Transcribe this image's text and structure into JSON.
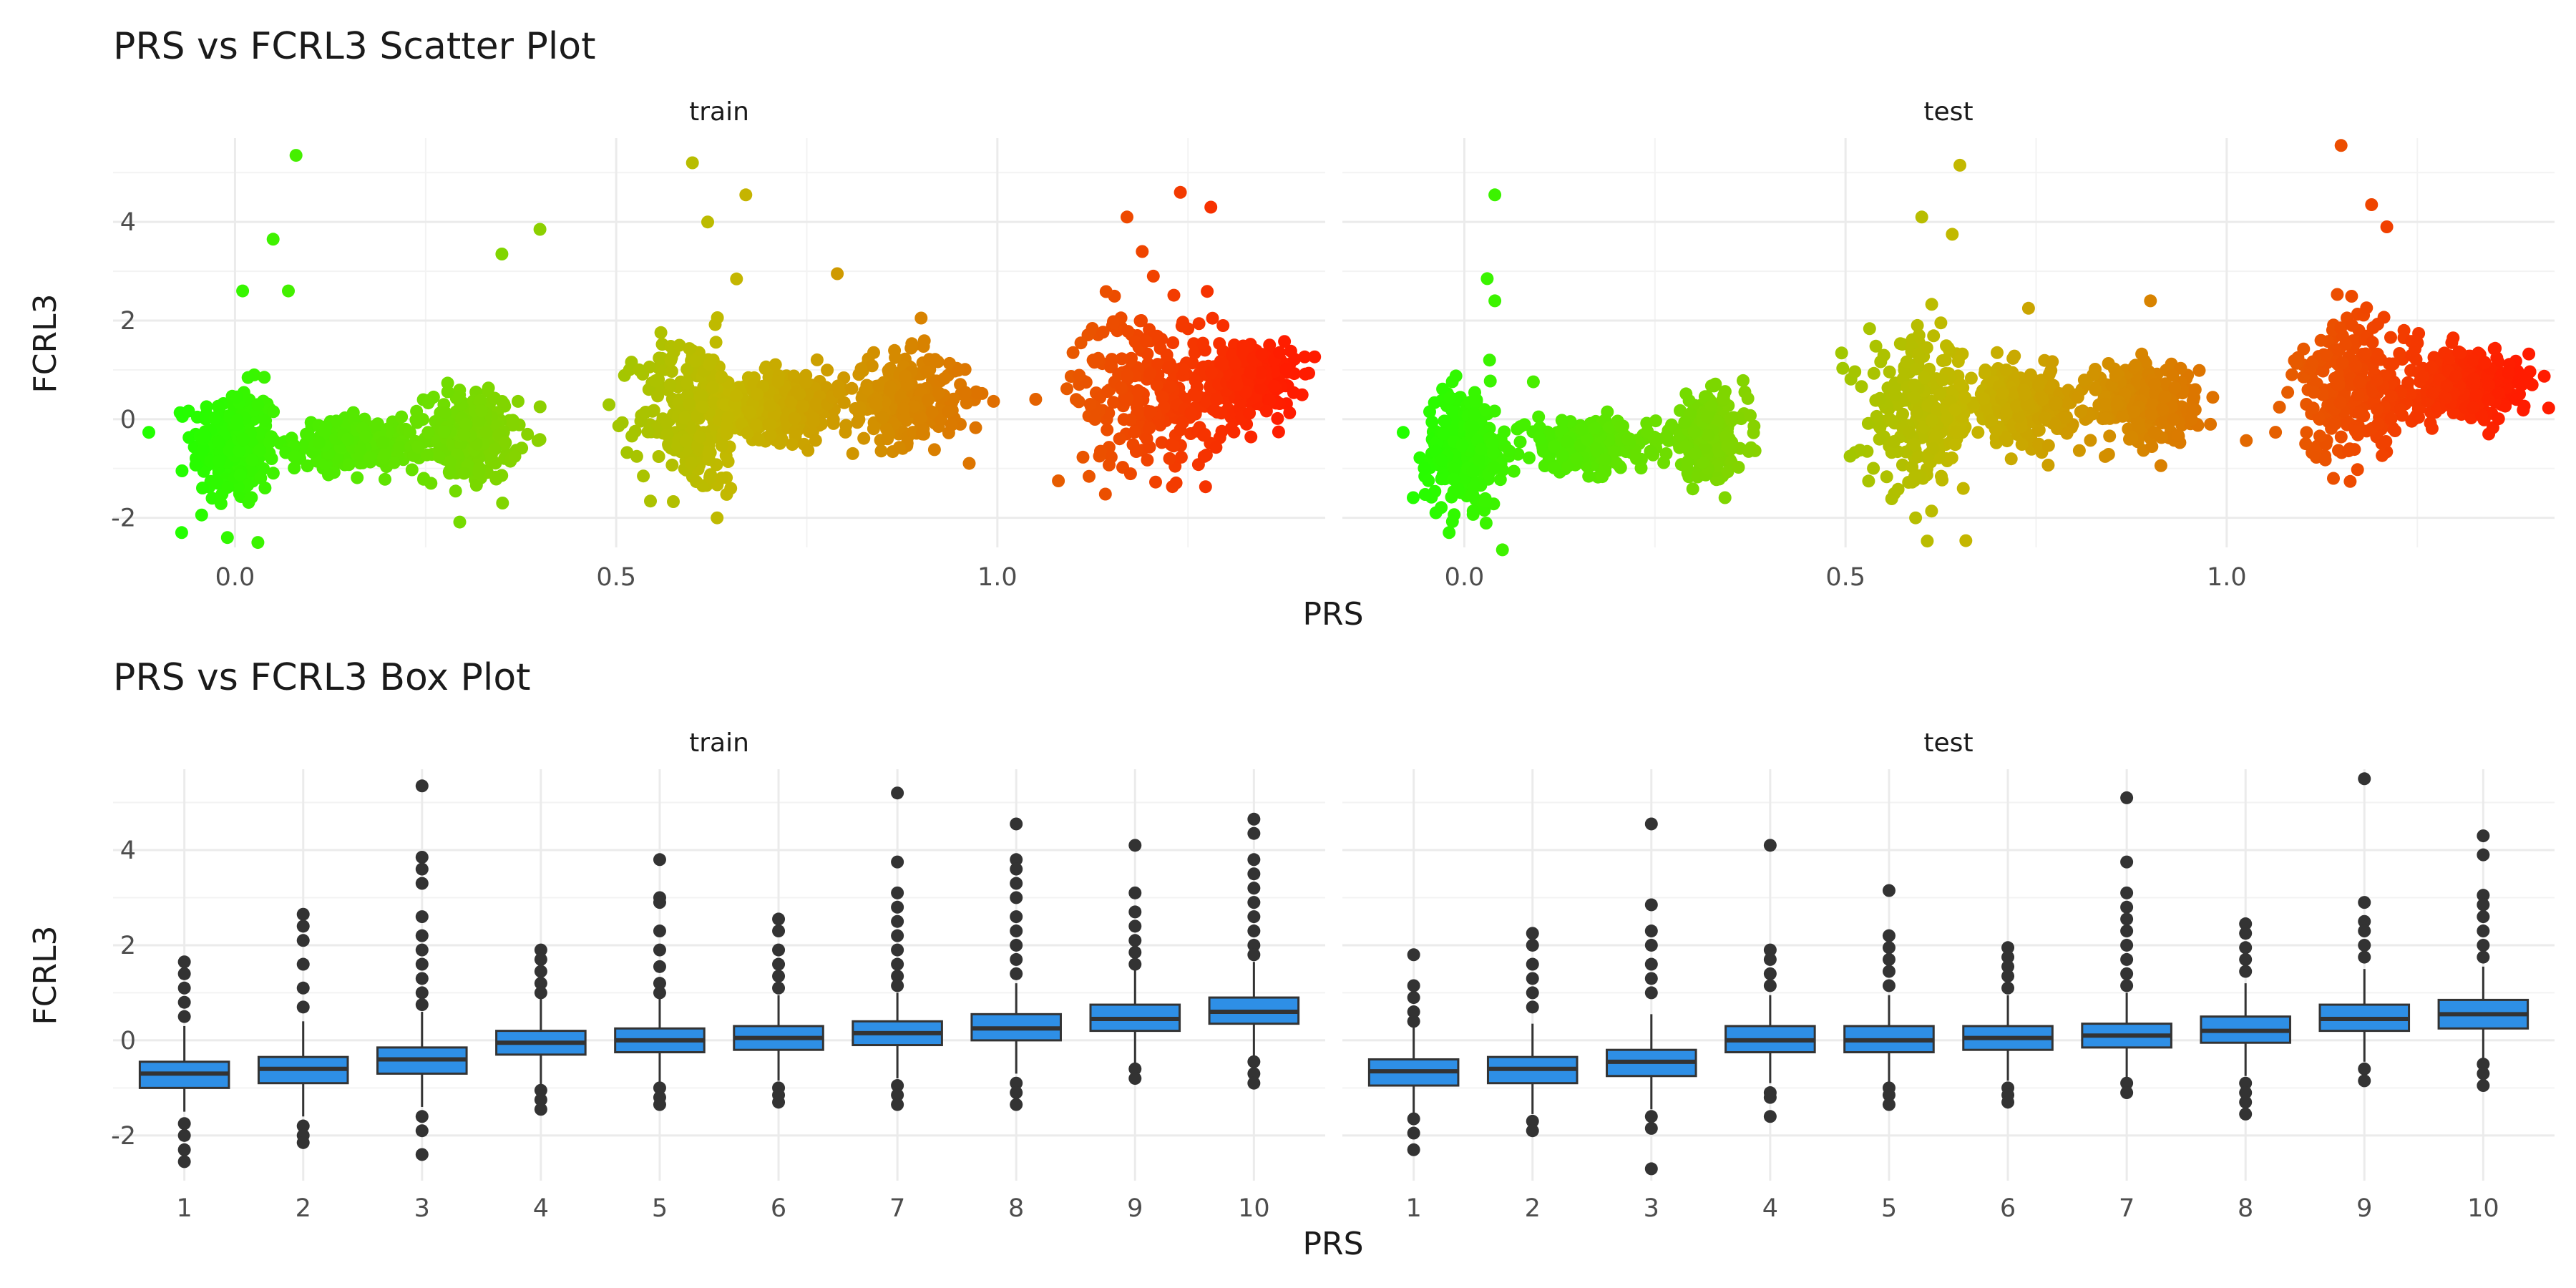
{
  "chart_data": [
    {
      "type": "scatter",
      "title": "PRS vs FCRL3 Scatter Plot",
      "xlabel": "PRS",
      "ylabel": "FCRL3",
      "xlim": [
        -0.16,
        1.43
      ],
      "ylim": [
        -2.6,
        5.7
      ],
      "xticks": [
        0.0,
        0.5,
        1.0
      ],
      "xtick_labels": [
        "0.0",
        "0.5",
        "1.0"
      ],
      "yticks": [
        -2,
        0,
        2,
        4
      ],
      "ytick_labels": [
        "-2",
        "0",
        "2",
        "4"
      ],
      "grid": true,
      "color_scale": {
        "low": "#22ff00",
        "mid": "#c3b800",
        "high": "#ff1c00",
        "by": "PRS"
      },
      "panels": [
        {
          "name": "train",
          "clusters": [
            {
              "x": 0.0,
              "y_center": -0.55,
              "x_sd": 0.028,
              "y_sd": 0.6
            },
            {
              "x": 0.16,
              "y_center": -0.5,
              "x_sd": 0.04,
              "y_sd": 0.25
            },
            {
              "x": 0.31,
              "y_center": -0.35,
              "x_sd": 0.03,
              "y_sd": 0.45
            },
            {
              "x": 0.6,
              "y_center": 0.1,
              "x_sd": 0.035,
              "y_sd": 0.8
            },
            {
              "x": 0.72,
              "y_center": 0.3,
              "x_sd": 0.04,
              "y_sd": 0.35
            },
            {
              "x": 0.88,
              "y_center": 0.4,
              "x_sd": 0.04,
              "y_sd": 0.45
            },
            {
              "x": 1.2,
              "y_center": 0.6,
              "x_sd": 0.05,
              "y_sd": 0.8
            },
            {
              "x": 1.33,
              "y_center": 0.8,
              "x_sd": 0.03,
              "y_sd": 0.4
            }
          ],
          "outliers": [
            {
              "x": 0.08,
              "y": 5.35
            },
            {
              "x": 0.05,
              "y": 3.65
            },
            {
              "x": 0.07,
              "y": 2.6
            },
            {
              "x": 0.01,
              "y": 2.6
            },
            {
              "x": -0.07,
              "y": -2.3
            },
            {
              "x": -0.01,
              "y": -2.4
            },
            {
              "x": 0.03,
              "y": -2.5
            },
            {
              "x": 0.35,
              "y": 3.35
            },
            {
              "x": 0.4,
              "y": 3.85
            },
            {
              "x": 0.6,
              "y": 5.2
            },
            {
              "x": 0.67,
              "y": 4.55
            },
            {
              "x": 0.62,
              "y": 4.0
            },
            {
              "x": 0.79,
              "y": 2.95
            },
            {
              "x": 0.9,
              "y": 2.05
            },
            {
              "x": 1.17,
              "y": 4.1
            },
            {
              "x": 1.24,
              "y": 4.6
            },
            {
              "x": 1.28,
              "y": 4.3
            },
            {
              "x": 1.19,
              "y": 3.4
            },
            {
              "x": 1.37,
              "y": 1.35
            },
            {
              "x": 1.08,
              "y": -1.25
            }
          ]
        },
        {
          "name": "test",
          "clusters": [
            {
              "x": 0.0,
              "y_center": -0.55,
              "x_sd": 0.025,
              "y_sd": 0.6
            },
            {
              "x": 0.16,
              "y_center": -0.55,
              "x_sd": 0.04,
              "y_sd": 0.25
            },
            {
              "x": 0.32,
              "y_center": -0.35,
              "x_sd": 0.025,
              "y_sd": 0.4
            },
            {
              "x": 0.6,
              "y_center": 0.1,
              "x_sd": 0.035,
              "y_sd": 0.75
            },
            {
              "x": 0.73,
              "y_center": 0.3,
              "x_sd": 0.035,
              "y_sd": 0.35
            },
            {
              "x": 0.89,
              "y_center": 0.35,
              "x_sd": 0.035,
              "y_sd": 0.4
            },
            {
              "x": 1.17,
              "y_center": 0.6,
              "x_sd": 0.04,
              "y_sd": 0.7
            },
            {
              "x": 1.32,
              "y_center": 0.7,
              "x_sd": 0.04,
              "y_sd": 0.35
            }
          ],
          "outliers": [
            {
              "x": 0.04,
              "y": 4.55
            },
            {
              "x": 0.03,
              "y": 2.85
            },
            {
              "x": 0.04,
              "y": 2.4
            },
            {
              "x": 0.05,
              "y": -2.65
            },
            {
              "x": -0.02,
              "y": -2.3
            },
            {
              "x": 0.6,
              "y": 4.1
            },
            {
              "x": 0.65,
              "y": 5.15
            },
            {
              "x": 0.64,
              "y": 3.75
            },
            {
              "x": 0.74,
              "y": 2.25
            },
            {
              "x": 0.9,
              "y": 2.4
            },
            {
              "x": 1.15,
              "y": 5.55
            },
            {
              "x": 1.19,
              "y": 4.35
            },
            {
              "x": 1.21,
              "y": 3.9
            },
            {
              "x": 1.14,
              "y": -1.2
            },
            {
              "x": 1.38,
              "y": 0.4
            }
          ]
        }
      ]
    },
    {
      "type": "box",
      "title": "PRS vs FCRL3 Box Plot",
      "xlabel": "PRS",
      "ylabel": "FCRL3",
      "categories": [
        "1",
        "2",
        "3",
        "4",
        "5",
        "6",
        "7",
        "8",
        "9",
        "10"
      ],
      "ylim": [
        -2.95,
        5.7
      ],
      "yticks": [
        -2,
        0,
        2,
        4
      ],
      "ytick_labels": [
        "-2",
        "0",
        "2",
        "4"
      ],
      "grid": true,
      "fill_color": "#2e8fe6",
      "panels": [
        {
          "name": "train",
          "boxes": [
            {
              "category": "1",
              "q1": -1.0,
              "median": -0.7,
              "q3": -0.45,
              "whisker_low": -1.5,
              "whisker_high": 0.3,
              "outliers": [
                1.65,
                1.4,
                1.1,
                0.8,
                0.5,
                -1.75,
                -2.0,
                -2.3,
                -2.55
              ]
            },
            {
              "category": "2",
              "q1": -0.9,
              "median": -0.6,
              "q3": -0.35,
              "whisker_low": -1.6,
              "whisker_high": 0.4,
              "outliers": [
                2.65,
                2.4,
                2.1,
                1.6,
                1.1,
                0.7,
                -1.8,
                -2.0,
                -2.15
              ]
            },
            {
              "category": "3",
              "q1": -0.7,
              "median": -0.4,
              "q3": -0.15,
              "whisker_low": -1.4,
              "whisker_high": 0.6,
              "outliers": [
                5.35,
                3.85,
                3.6,
                3.3,
                2.6,
                2.2,
                1.9,
                1.6,
                1.3,
                1.0,
                0.75,
                -1.6,
                -1.9,
                -2.4
              ]
            },
            {
              "category": "4",
              "q1": -0.3,
              "median": -0.05,
              "q3": 0.2,
              "whisker_low": -0.95,
              "whisker_high": 0.9,
              "outliers": [
                1.9,
                1.7,
                1.45,
                1.2,
                1.0,
                -1.05,
                -1.25,
                -1.45
              ]
            },
            {
              "category": "5",
              "q1": -0.25,
              "median": 0.0,
              "q3": 0.25,
              "whisker_low": -0.9,
              "whisker_high": 0.9,
              "outliers": [
                3.8,
                3.0,
                2.9,
                2.3,
                1.9,
                1.55,
                1.2,
                1.0,
                -1.0,
                -1.2,
                -1.35
              ]
            },
            {
              "category": "6",
              "q1": -0.2,
              "median": 0.05,
              "q3": 0.3,
              "whisker_low": -0.85,
              "whisker_high": 0.95,
              "outliers": [
                2.55,
                2.3,
                1.9,
                1.6,
                1.35,
                1.1,
                -1.0,
                -1.15,
                -1.3
              ]
            },
            {
              "category": "7",
              "q1": -0.1,
              "median": 0.15,
              "q3": 0.4,
              "whisker_low": -0.8,
              "whisker_high": 1.0,
              "outliers": [
                5.2,
                3.75,
                3.1,
                2.8,
                2.5,
                2.2,
                1.9,
                1.6,
                1.35,
                1.15,
                -0.95,
                -1.15,
                -1.35
              ]
            },
            {
              "category": "8",
              "q1": 0.0,
              "median": 0.25,
              "q3": 0.55,
              "whisker_low": -0.7,
              "whisker_high": 1.2,
              "outliers": [
                4.55,
                3.8,
                3.6,
                3.3,
                3.0,
                2.6,
                2.3,
                2.0,
                1.7,
                1.4,
                -0.9,
                -1.1,
                -1.35
              ]
            },
            {
              "category": "9",
              "q1": 0.2,
              "median": 0.45,
              "q3": 0.75,
              "whisker_low": -0.5,
              "whisker_high": 1.5,
              "outliers": [
                4.1,
                3.1,
                2.7,
                2.4,
                2.1,
                1.85,
                1.6,
                -0.6,
                -0.8
              ]
            },
            {
              "category": "10",
              "q1": 0.35,
              "median": 0.6,
              "q3": 0.9,
              "whisker_low": -0.35,
              "whisker_high": 1.65,
              "outliers": [
                4.65,
                4.35,
                3.8,
                3.5,
                3.2,
                2.9,
                2.6,
                2.3,
                2.0,
                1.8,
                -0.45,
                -0.7,
                -0.9
              ]
            }
          ]
        },
        {
          "name": "test",
          "boxes": [
            {
              "category": "1",
              "q1": -0.95,
              "median": -0.65,
              "q3": -0.4,
              "whisker_low": -1.55,
              "whisker_high": 0.3,
              "outliers": [
                1.8,
                1.15,
                0.9,
                0.6,
                0.4,
                -1.65,
                -1.95,
                -2.3
              ]
            },
            {
              "category": "2",
              "q1": -0.9,
              "median": -0.6,
              "q3": -0.35,
              "whisker_low": -1.55,
              "whisker_high": 0.35,
              "outliers": [
                2.25,
                2.0,
                1.6,
                1.3,
                1.0,
                0.7,
                -1.7,
                -1.9
              ]
            },
            {
              "category": "3",
              "q1": -0.75,
              "median": -0.45,
              "q3": -0.2,
              "whisker_low": -1.45,
              "whisker_high": 0.55,
              "outliers": [
                4.55,
                2.85,
                2.3,
                2.0,
                1.6,
                1.3,
                1.0,
                -1.6,
                -1.85,
                -2.7
              ]
            },
            {
              "category": "4",
              "q1": -0.25,
              "median": 0.0,
              "q3": 0.3,
              "whisker_low": -0.9,
              "whisker_high": 0.95,
              "outliers": [
                4.1,
                1.9,
                1.7,
                1.4,
                1.15,
                -1.1,
                -1.2,
                -1.6
              ]
            },
            {
              "category": "5",
              "q1": -0.25,
              "median": 0.0,
              "q3": 0.3,
              "whisker_low": -0.9,
              "whisker_high": 0.95,
              "outliers": [
                3.15,
                2.2,
                1.95,
                1.7,
                1.45,
                1.15,
                -1.0,
                -1.15,
                -1.35
              ]
            },
            {
              "category": "6",
              "q1": -0.2,
              "median": 0.05,
              "q3": 0.3,
              "whisker_low": -0.85,
              "whisker_high": 0.95,
              "outliers": [
                1.95,
                1.75,
                1.55,
                1.35,
                1.1,
                -1.0,
                -1.15,
                -1.3
              ]
            },
            {
              "category": "7",
              "q1": -0.15,
              "median": 0.1,
              "q3": 0.35,
              "whisker_low": -0.8,
              "whisker_high": 1.0,
              "outliers": [
                5.1,
                3.75,
                3.1,
                2.8,
                2.55,
                2.3,
                2.0,
                1.7,
                1.4,
                1.15,
                -0.9,
                -1.1
              ]
            },
            {
              "category": "8",
              "q1": -0.05,
              "median": 0.2,
              "q3": 0.5,
              "whisker_low": -0.75,
              "whisker_high": 1.2,
              "outliers": [
                2.45,
                2.25,
                1.95,
                1.7,
                1.45,
                -0.9,
                -1.1,
                -1.3,
                -1.55
              ]
            },
            {
              "category": "9",
              "q1": 0.2,
              "median": 0.45,
              "q3": 0.75,
              "whisker_low": -0.45,
              "whisker_high": 1.5,
              "outliers": [
                5.5,
                2.9,
                2.5,
                2.3,
                2.0,
                1.75,
                -0.6,
                -0.85
              ]
            },
            {
              "category": "10",
              "q1": 0.25,
              "median": 0.55,
              "q3": 0.85,
              "whisker_low": -0.4,
              "whisker_high": 1.55,
              "outliers": [
                4.3,
                3.9,
                3.05,
                2.85,
                2.6,
                2.3,
                2.0,
                1.75,
                -0.5,
                -0.7,
                -0.95
              ]
            }
          ]
        }
      ]
    }
  ]
}
